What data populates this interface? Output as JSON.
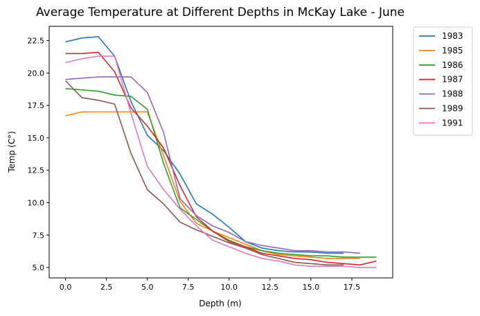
{
  "chart_data": {
    "type": "line",
    "title": "Average Temperature at Different Depths in McKay Lake - June",
    "xlabel": "Depth (m)",
    "ylabel": "Temp (C°)",
    "xlim": [
      -1,
      20
    ],
    "ylim": [
      4.2,
      23.6
    ],
    "xticks": [
      0.0,
      2.5,
      5.0,
      7.5,
      10.0,
      12.5,
      15.0,
      17.5
    ],
    "xtick_labels": [
      "0.0",
      "2.5",
      "5.0",
      "7.5",
      "10.0",
      "12.5",
      "15.0",
      "17.5"
    ],
    "yticks": [
      5.0,
      7.5,
      10.0,
      12.5,
      15.0,
      17.5,
      20.0,
      22.5
    ],
    "ytick_labels": [
      "5.0",
      "7.5",
      "10.0",
      "12.5",
      "15.0",
      "17.5",
      "20.0",
      "22.5"
    ],
    "grid": false,
    "legend_position": "outside-top-right",
    "series": [
      {
        "name": "1983",
        "color": "#1f77b4",
        "x": [
          0,
          1,
          2,
          3,
          4,
          5,
          6,
          7,
          8,
          9,
          10,
          11,
          12,
          13,
          14,
          15,
          16,
          17
        ],
        "y": [
          22.4,
          22.7,
          22.8,
          21.3,
          17.8,
          15.2,
          14.0,
          12.2,
          9.9,
          9.1,
          8.1,
          7.0,
          6.5,
          6.3,
          6.2,
          6.2,
          6.1,
          6.1
        ]
      },
      {
        "name": "1985",
        "color": "#ff7f0e",
        "x": [
          0,
          1,
          2,
          3,
          4,
          5,
          6,
          7,
          8,
          9,
          10,
          11,
          12,
          13,
          14,
          15,
          16,
          17,
          18
        ],
        "y": [
          16.7,
          17.0,
          17.0,
          17.0,
          17.0,
          17.0,
          13.6,
          10.1,
          8.4,
          7.8,
          7.3,
          6.8,
          6.3,
          6.0,
          5.9,
          5.8,
          5.7,
          5.7,
          5.7
        ]
      },
      {
        "name": "1986",
        "color": "#2ca02c",
        "x": [
          0,
          1,
          2,
          3,
          4,
          5,
          6,
          7,
          8,
          9,
          10,
          11,
          12,
          13,
          14,
          15,
          16,
          17,
          18,
          19
        ],
        "y": [
          18.8,
          18.7,
          18.6,
          18.3,
          18.2,
          17.2,
          13.0,
          9.6,
          8.7,
          7.8,
          7.1,
          6.6,
          6.3,
          6.1,
          6.0,
          5.9,
          5.9,
          5.8,
          5.8,
          5.8
        ]
      },
      {
        "name": "1987",
        "color": "#d62728",
        "x": [
          0,
          1,
          2,
          3,
          4,
          5,
          6,
          7,
          8,
          9,
          10,
          11,
          12,
          13,
          14,
          15,
          16,
          17,
          18,
          19
        ],
        "y": [
          21.5,
          21.5,
          21.6,
          20.1,
          17.3,
          15.9,
          14.2,
          11.3,
          8.9,
          7.8,
          7.0,
          6.6,
          6.1,
          5.9,
          5.7,
          5.6,
          5.4,
          5.3,
          5.2,
          5.5
        ]
      },
      {
        "name": "1988",
        "color": "#9467bd",
        "x": [
          0,
          1,
          2,
          3,
          4,
          5,
          6,
          7,
          8,
          9,
          10,
          11,
          12,
          13,
          14,
          15,
          16,
          17,
          18
        ],
        "y": [
          19.5,
          19.6,
          19.7,
          19.7,
          19.7,
          18.5,
          15.4,
          10.3,
          9.0,
          8.2,
          7.7,
          7.0,
          6.7,
          6.5,
          6.3,
          6.3,
          6.2,
          6.2,
          6.1
        ]
      },
      {
        "name": "1989",
        "color": "#8c564b",
        "x": [
          0,
          1,
          2,
          3,
          4,
          5,
          6,
          7,
          8,
          9,
          10,
          11,
          12,
          13,
          14,
          15,
          16,
          17
        ],
        "y": [
          19.4,
          18.1,
          17.9,
          17.6,
          13.8,
          11.0,
          9.9,
          8.5,
          7.9,
          7.4,
          6.9,
          6.5,
          6.0,
          5.7,
          5.4,
          5.3,
          5.2,
          5.2
        ]
      },
      {
        "name": "1991",
        "color": "#e377c2",
        "x": [
          0,
          1,
          2,
          3,
          4,
          5,
          6,
          7,
          8,
          9,
          10,
          11,
          12,
          13,
          14,
          15,
          16,
          17,
          18,
          19
        ],
        "y": [
          20.8,
          21.1,
          21.3,
          21.3,
          16.9,
          12.8,
          11.0,
          9.5,
          8.2,
          7.1,
          6.6,
          6.1,
          5.7,
          5.5,
          5.2,
          5.1,
          5.1,
          5.1,
          5.0,
          5.0
        ]
      }
    ]
  }
}
